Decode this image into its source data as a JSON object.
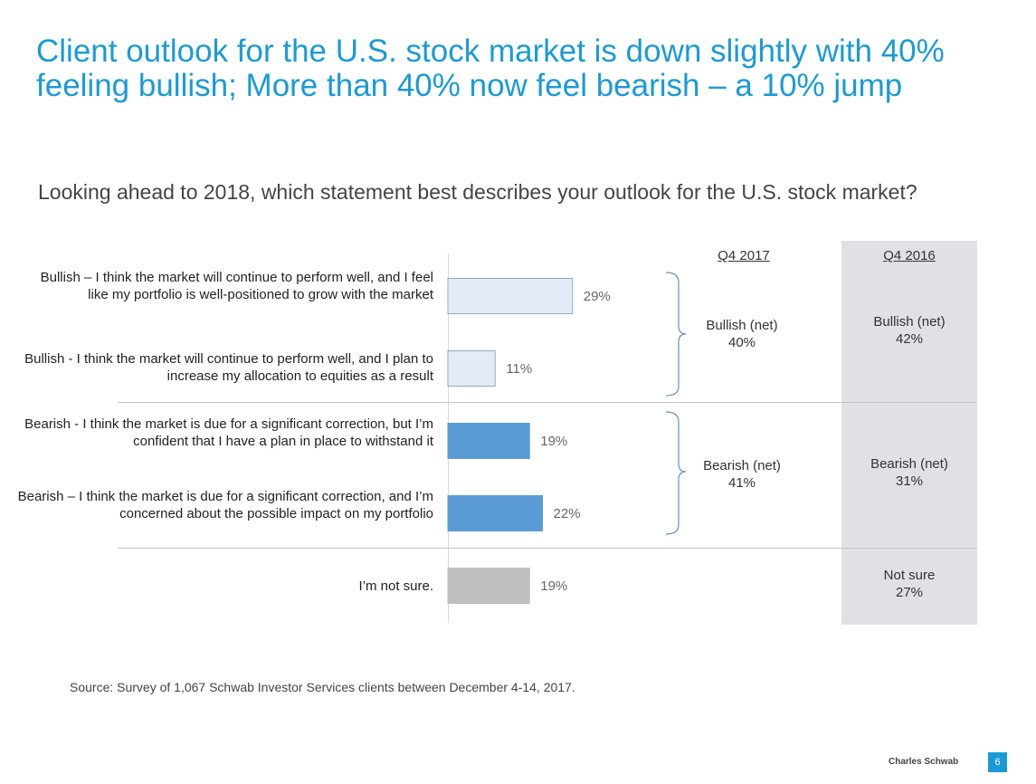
{
  "title": "Client outlook for the U.S. stock market is down slightly with 40% feeling bullish; More than 40% now feel bearish – a 10% jump",
  "question": "Looking ahead to 2018, which statement best describes your outlook for the U.S. stock market?",
  "column_headers": {
    "current": "Q4 2017",
    "previous": "Q4 2016"
  },
  "net_results": {
    "q4_2017": [
      {
        "label": "Bullish (net)",
        "value": "40%"
      },
      {
        "label": "Bearish (net)",
        "value": "41%"
      }
    ],
    "q4_2016": [
      {
        "label": "Bullish (net)",
        "value": "42%"
      },
      {
        "label": "Bearish (net)",
        "value": "31%"
      },
      {
        "label": "Not sure",
        "value": "27%"
      }
    ]
  },
  "chart_data": {
    "type": "bar",
    "orientation": "horizontal",
    "title": "",
    "xlabel": "",
    "ylabel": "",
    "xlim": [
      0,
      50
    ],
    "categories": [
      "Bullish – I think the market will continue to perform well, and I feel like my portfolio is well-positioned to grow with the market",
      "Bullish - I think the market will continue to perform well, and I plan to increase my allocation to equities as a result",
      "Bearish - I think the market is due for a significant correction, but I’m confident that I have a plan in place to withstand it",
      "Bearish – I think the market is due for a significant correction, and I’m concerned about the possible impact on my portfolio",
      "I’m not sure."
    ],
    "values": [
      29,
      11,
      19,
      22,
      19
    ],
    "value_labels": [
      "29%",
      "11%",
      "19%",
      "22%",
      "19%"
    ],
    "bar_colors": [
      "#e3ecf6",
      "#e3ecf6",
      "#5b9bd5",
      "#5b9bd5",
      "#bfbfbf"
    ],
    "bar_borders": [
      "#8ea9c8",
      "#8ea9c8",
      "#5b9bd5",
      "#5b9bd5",
      "#bfbfbf"
    ]
  },
  "footer": {
    "source": "Source: Survey of 1,067 Schwab Investor Services clients between December 4-14, 2017.",
    "brand": "Charles Schwab",
    "page": "6"
  }
}
